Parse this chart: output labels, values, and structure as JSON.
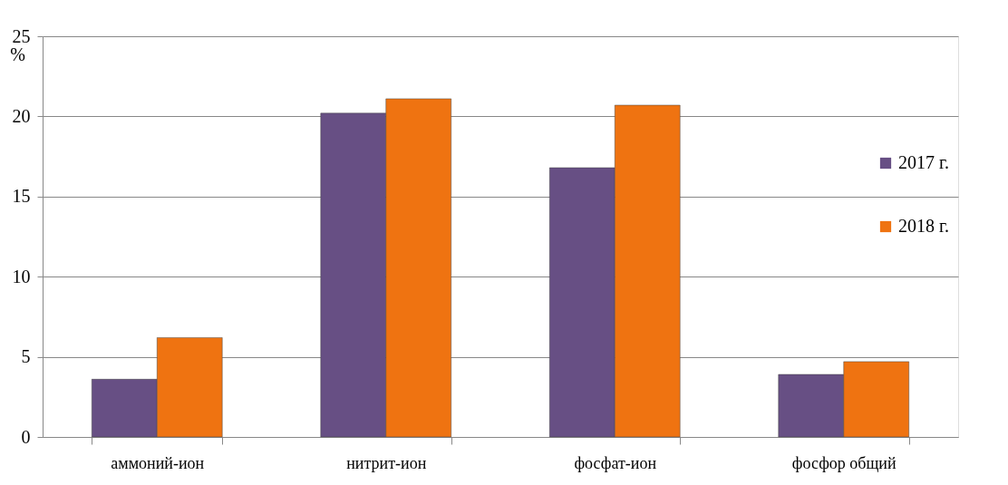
{
  "chart_data": {
    "type": "bar",
    "ylabel": "%",
    "categories": [
      "аммоний-ион",
      "нитрит-ион",
      "фосфат-ион",
      "фосфор общий"
    ],
    "series": [
      {
        "name": "2017 г.",
        "color": "#674f84",
        "values": [
          3.6,
          20.2,
          16.8,
          3.9
        ]
      },
      {
        "name": "2018 г.",
        "color": "#ef7311",
        "values": [
          6.2,
          21.1,
          20.7,
          4.7
        ]
      }
    ],
    "ylim": [
      0,
      25
    ],
    "yticks": [
      0,
      5,
      10,
      15,
      20,
      25
    ],
    "grid": "y",
    "legend": "right"
  }
}
